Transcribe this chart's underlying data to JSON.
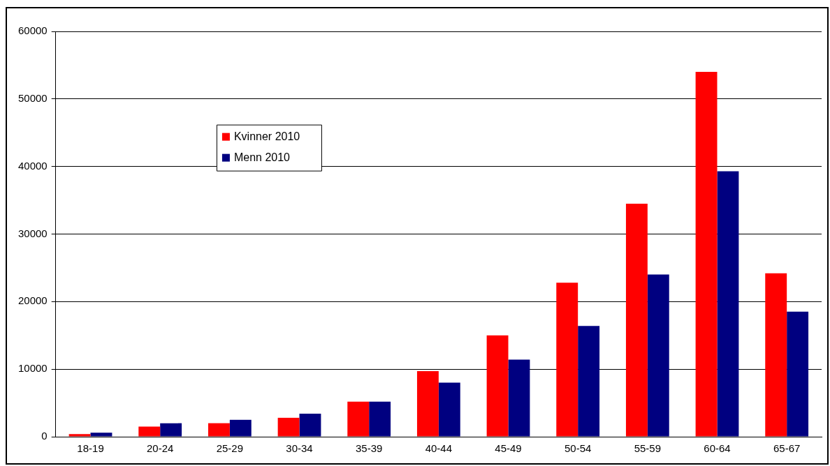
{
  "chart_data": {
    "type": "bar",
    "categories": [
      "18-19",
      "20-24",
      "25-29",
      "30-34",
      "35-39",
      "40-44",
      "45-49",
      "50-54",
      "55-59",
      "60-64",
      "65-67"
    ],
    "series": [
      {
        "name": "Kvinner 2010",
        "color": "#ff0000",
        "values": [
          400,
          1500,
          2000,
          2800,
          5200,
          9700,
          15000,
          22800,
          34500,
          54000,
          24200
        ]
      },
      {
        "name": "Menn 2010",
        "color": "#000080",
        "values": [
          600,
          2000,
          2500,
          3400,
          5200,
          8000,
          11400,
          16400,
          24000,
          39300,
          18500
        ]
      }
    ],
    "ylim": [
      0,
      60000
    ],
    "yticks": [
      0,
      10000,
      20000,
      30000,
      40000,
      50000,
      60000
    ],
    "grid": "y",
    "legend": "top left"
  }
}
